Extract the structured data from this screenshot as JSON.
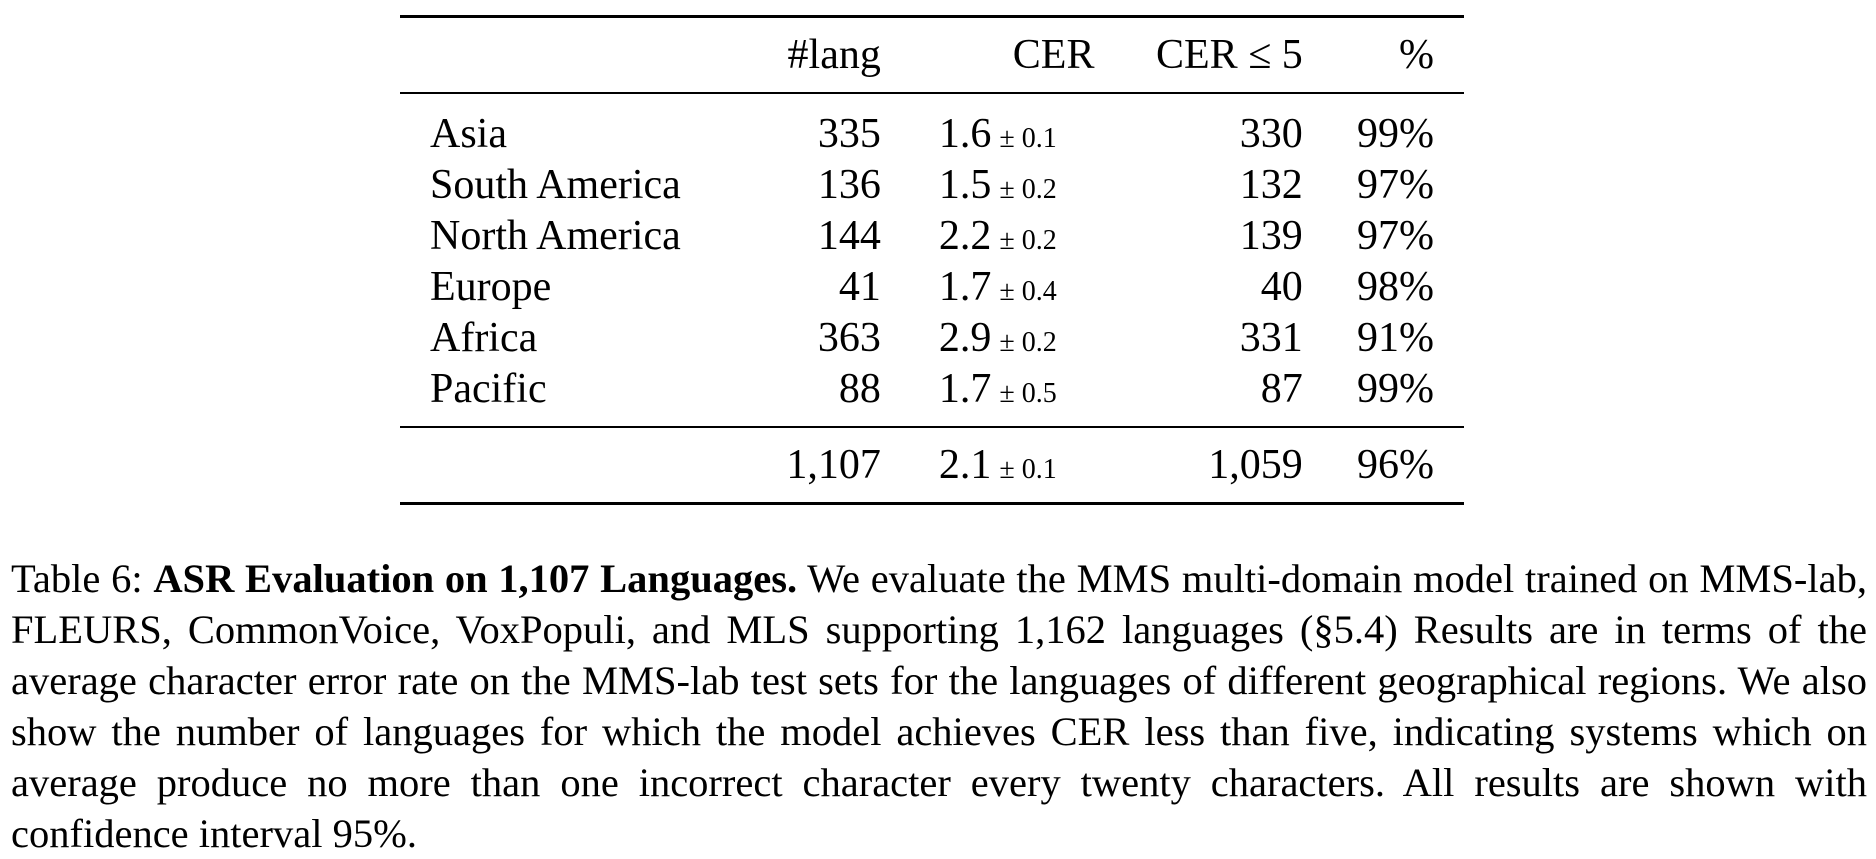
{
  "table": {
    "headers": [
      "",
      "#lang",
      "CER",
      "CER ≤ 5",
      "%"
    ],
    "rows": [
      {
        "region": "Asia",
        "lang": "335",
        "cer": "1.6",
        "ci": "± 0.1",
        "cer5": "330",
        "pct": "99%"
      },
      {
        "region": "South America",
        "lang": "136",
        "cer": "1.5",
        "ci": "± 0.2",
        "cer5": "132",
        "pct": "97%"
      },
      {
        "region": "North America",
        "lang": "144",
        "cer": "2.2",
        "ci": "± 0.2",
        "cer5": "139",
        "pct": "97%"
      },
      {
        "region": "Europe",
        "lang": "41",
        "cer": "1.7",
        "ci": "± 0.4",
        "cer5": "40",
        "pct": "98%"
      },
      {
        "region": "Africa",
        "lang": "363",
        "cer": "2.9",
        "ci": "± 0.2",
        "cer5": "331",
        "pct": "91%"
      },
      {
        "region": "Pacific",
        "lang": "88",
        "cer": "1.7",
        "ci": "± 0.5",
        "cer5": "87",
        "pct": "99%"
      }
    ],
    "total": {
      "region": "",
      "lang": "1,107",
      "cer": "2.1",
      "ci": "± 0.1",
      "cer5": "1,059",
      "pct": "96%"
    }
  },
  "caption": {
    "label": "Table 6: ",
    "title": "ASR Evaluation on 1,107 Languages.",
    "body": " We evaluate the MMS multi-domain model trained on MMS-lab, FLEURS, CommonVoice, VoxPopuli, and MLS supporting 1,162 languages (§5.4) Results are in terms of the average character error rate on the MMS-lab test sets for the languages of different geographical regions. We also show the number of languages for which the model achieves CER less than five, indicating systems which on average produce no more than one incorrect character every twenty characters. All results are shown with confidence interval 95%."
  }
}
